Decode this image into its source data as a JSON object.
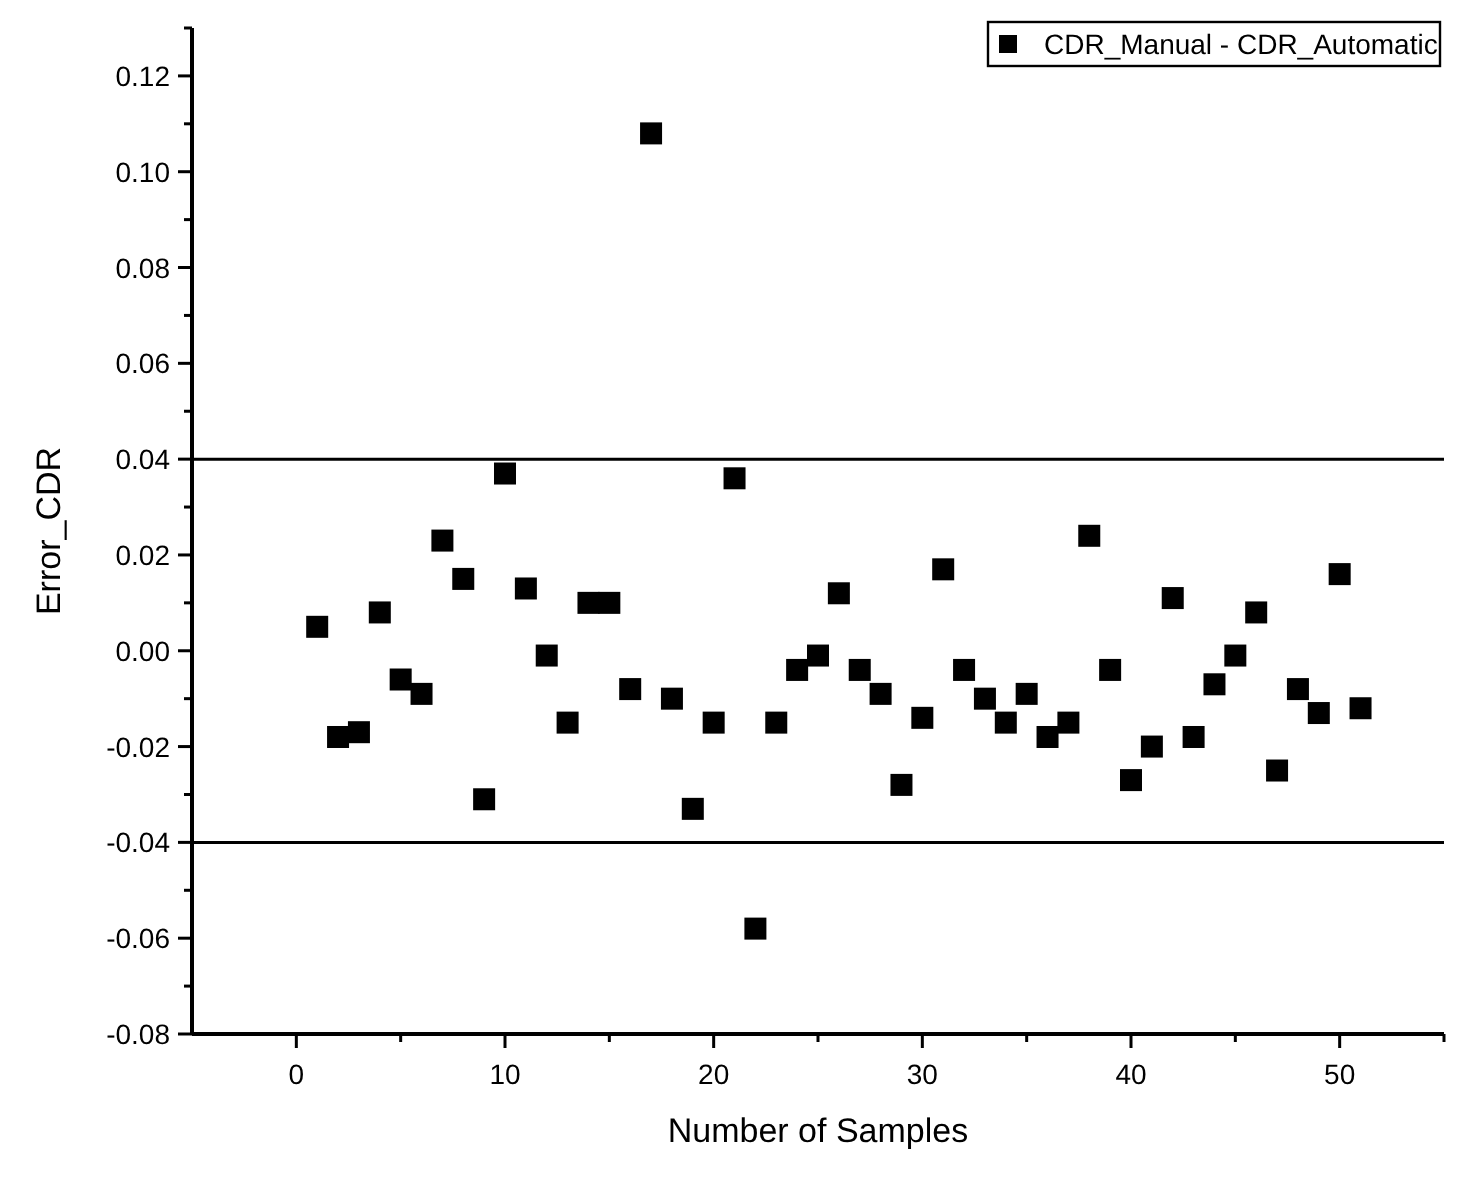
{
  "chart_data": {
    "type": "scatter",
    "xlabel": "Number of Samples",
    "ylabel": "Error_CDR",
    "x": [
      1,
      2,
      3,
      4,
      5,
      6,
      7,
      8,
      9,
      10,
      11,
      12,
      13,
      14,
      15,
      16,
      17,
      18,
      19,
      20,
      21,
      22,
      23,
      24,
      25,
      26,
      27,
      28,
      29,
      30,
      31,
      32,
      33,
      34,
      35,
      36,
      37,
      38,
      39,
      40,
      41,
      42,
      43,
      44,
      45,
      46,
      47,
      48,
      49,
      50,
      51
    ],
    "series": [
      {
        "name": "CDR_Manual - CDR_Automatic",
        "color": "#000000",
        "values": [
          0.005,
          -0.018,
          -0.017,
          0.008,
          -0.006,
          -0.009,
          0.023,
          0.015,
          -0.031,
          0.037,
          0.013,
          -0.001,
          -0.015,
          0.01,
          0.01,
          -0.008,
          0.108,
          -0.01,
          -0.033,
          -0.015,
          0.036,
          -0.058,
          -0.015,
          -0.004,
          -0.001,
          0.012,
          -0.004,
          -0.009,
          -0.028,
          -0.014,
          0.017,
          -0.004,
          -0.01,
          -0.015,
          -0.009,
          -0.018,
          -0.015,
          0.024,
          -0.004,
          -0.027,
          -0.02,
          0.011,
          -0.018,
          -0.007,
          -0.001,
          0.008,
          -0.025,
          -0.008,
          -0.013,
          0.016,
          -0.012
        ]
      }
    ],
    "marker": "square",
    "legend": "top right",
    "grid": false,
    "xlim": [
      -5,
      55
    ],
    "xticks": [
      0,
      {
        "value": 5,
        "label": null
      },
      10,
      {
        "value": 15,
        "label": null
      },
      20,
      {
        "value": 25,
        "label": null
      },
      30,
      {
        "value": 35,
        "label": null
      },
      40,
      {
        "value": 45,
        "label": null
      },
      50,
      {
        "value": 55,
        "label": null
      }
    ],
    "ylim": [
      -0.08,
      0.13
    ],
    "yticks": [
      {
        "value": -0.08,
        "label": "-0.08"
      },
      {
        "value": -0.07,
        "label": null
      },
      {
        "value": -0.06,
        "label": "-0.06"
      },
      {
        "value": -0.05,
        "label": null
      },
      {
        "value": -0.04,
        "label": "-0.04"
      },
      {
        "value": -0.03,
        "label": null
      },
      {
        "value": -0.02,
        "label": "-0.02"
      },
      {
        "value": -0.01,
        "label": null
      },
      {
        "value": 0,
        "label": "0.00"
      },
      {
        "value": 0.01,
        "label": null
      },
      {
        "value": 0.02,
        "label": "0.02"
      },
      {
        "value": 0.03,
        "label": null
      },
      {
        "value": 0.04,
        "label": "0.04"
      },
      {
        "value": 0.05,
        "label": null
      },
      {
        "value": 0.06,
        "label": "0.06"
      },
      {
        "value": 0.07,
        "label": null
      },
      {
        "value": 0.08,
        "label": "0.08"
      },
      {
        "value": 0.09,
        "label": null
      },
      {
        "value": 0.1,
        "label": "0.10"
      },
      {
        "value": 0.11,
        "label": null
      },
      {
        "value": 0.12,
        "label": "0.12"
      },
      {
        "value": 0.13,
        "label": null
      }
    ],
    "ref_lines": [
      {
        "axis": "y",
        "value": 0.04,
        "color": "#000000"
      },
      {
        "axis": "y",
        "value": -0.04,
        "color": "#000000"
      }
    ]
  }
}
